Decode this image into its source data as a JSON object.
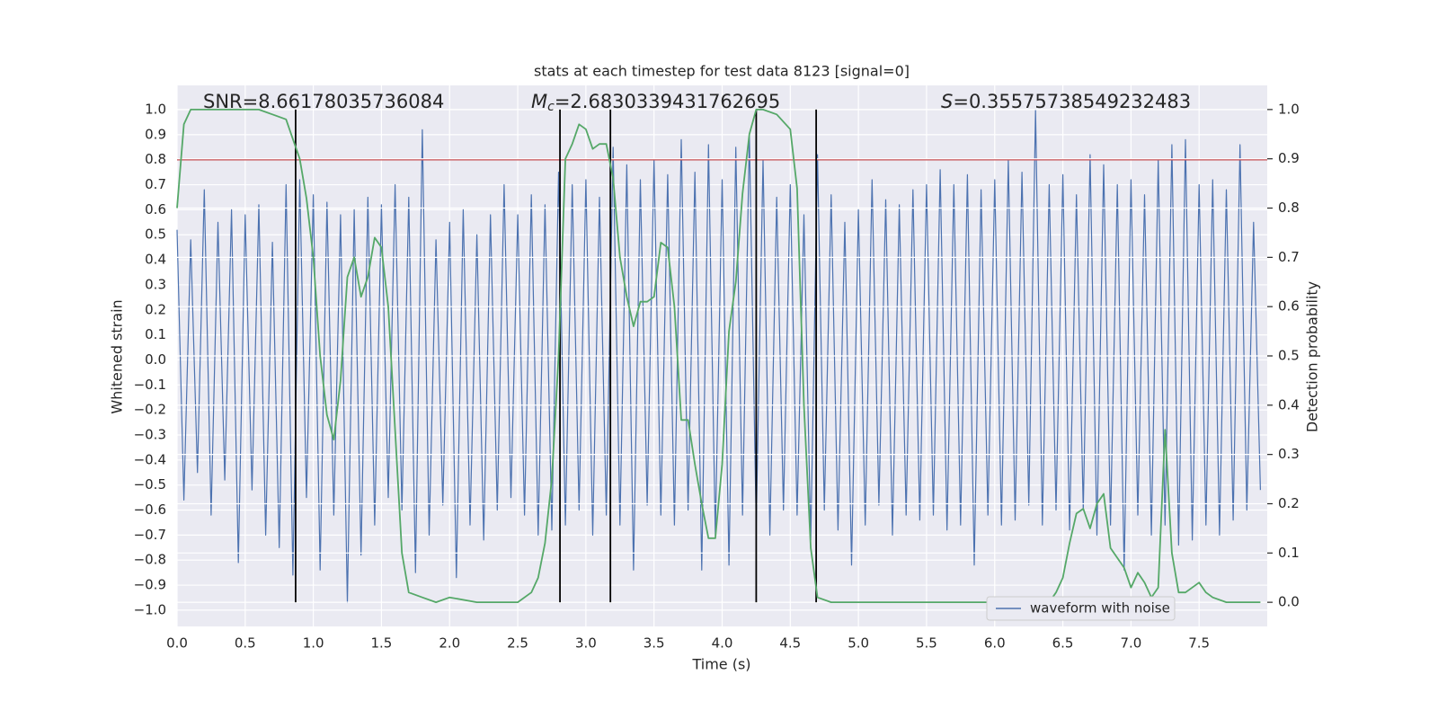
{
  "chart_data": {
    "type": "line",
    "title": "stats at each timestep for test data 8123 [signal=0]",
    "xlabel": "Time (s)",
    "ylabel": "Whitened strain",
    "y2label": "Detection probability",
    "annotations": [
      {
        "label": "SNR=8.66178035736084"
      },
      {
        "symbol": "M",
        "subscript": "c",
        "label": "=2.6830339431762695"
      },
      {
        "symbol": "S",
        "label": "=0.35575738549232483"
      }
    ],
    "xlim": [
      0,
      8.0
    ],
    "ylim": [
      -1.065,
      1.097
    ],
    "y2lim": [
      -0.049,
      1.049
    ],
    "xticks": [
      {
        "value": 0,
        "label": "0.0"
      },
      0.5,
      {
        "value": 1,
        "label": "1.0"
      },
      1.5,
      {
        "value": 2,
        "label": "2.0"
      },
      2.5,
      {
        "value": 3,
        "label": "3.0"
      },
      3.5,
      {
        "value": 4,
        "label": "4.0"
      },
      4.5,
      {
        "value": 5,
        "label": "5.0"
      },
      5.5,
      {
        "value": 6,
        "label": "6.0"
      },
      6.5,
      {
        "value": 7,
        "label": "7.0"
      },
      7.5
    ],
    "yticks": [
      {
        "value": -1,
        "label": "−1.0"
      },
      {
        "value": -0.9,
        "label": "−0.9"
      },
      {
        "value": -0.8,
        "label": "−0.8"
      },
      {
        "value": -0.7,
        "label": "−0.7"
      },
      {
        "value": -0.6,
        "label": "−0.6"
      },
      {
        "value": -0.5,
        "label": "−0.5"
      },
      {
        "value": -0.4,
        "label": "−0.4"
      },
      {
        "value": -0.3,
        "label": "−0.3"
      },
      {
        "value": -0.2,
        "label": "−0.2"
      },
      {
        "value": -0.1,
        "label": "−0.1"
      },
      {
        "value": 0,
        "label": "0.0"
      },
      0.1,
      0.2,
      0.3,
      0.4,
      0.5,
      0.6,
      0.7,
      0.8,
      0.9,
      {
        "value": 1,
        "label": "1.0"
      }
    ],
    "y2ticks": [
      {
        "value": 0,
        "label": "0.0"
      },
      0.1,
      0.2,
      0.3,
      0.4,
      0.5,
      0.6,
      0.7,
      0.8,
      0.9,
      {
        "value": 1,
        "label": "1.0"
      }
    ],
    "grid": true,
    "legend": "lower right",
    "hline": {
      "y": 0.8,
      "color": "#c44e52"
    },
    "vlines": {
      "x": [
        0.87,
        2.81,
        3.18,
        4.25,
        4.69
      ],
      "ymin": 0,
      "ymax": 1,
      "axis": "y2",
      "color": "#000000"
    },
    "series": [
      {
        "name": "waveform with noise",
        "color": "#4c72b0",
        "x": [
          0,
          0.05,
          0.1,
          0.15,
          0.2,
          0.25,
          0.3,
          0.35,
          0.4,
          0.45,
          0.5,
          0.55,
          0.6,
          0.65,
          0.7,
          0.75,
          0.8,
          0.85,
          0.9,
          0.95,
          1.0,
          1.05,
          1.1,
          1.15,
          1.2,
          1.25,
          1.3,
          1.35,
          1.4,
          1.45,
          1.5,
          1.55,
          1.6,
          1.65,
          1.7,
          1.75,
          1.8,
          1.85,
          1.9,
          1.95,
          2.0,
          2.05,
          2.1,
          2.15,
          2.2,
          2.25,
          2.3,
          2.35,
          2.4,
          2.45,
          2.5,
          2.55,
          2.6,
          2.65,
          2.7,
          2.75,
          2.8,
          2.85,
          2.9,
          2.95,
          3.0,
          3.05,
          3.1,
          3.15,
          3.2,
          3.25,
          3.3,
          3.35,
          3.4,
          3.45,
          3.5,
          3.55,
          3.6,
          3.65,
          3.7,
          3.75,
          3.8,
          3.85,
          3.9,
          3.95,
          4.0,
          4.05,
          4.1,
          4.15,
          4.2,
          4.25,
          4.3,
          4.35,
          4.4,
          4.45,
          4.5,
          4.55,
          4.6,
          4.65,
          4.7,
          4.75,
          4.8,
          4.85,
          4.9,
          4.95,
          5.0,
          5.05,
          5.1,
          5.15,
          5.2,
          5.25,
          5.3,
          5.35,
          5.4,
          5.45,
          5.5,
          5.55,
          5.6,
          5.65,
          5.7,
          5.75,
          5.8,
          5.85,
          5.9,
          5.95,
          6.0,
          6.05,
          6.1,
          6.15,
          6.2,
          6.25,
          6.3,
          6.35,
          6.4,
          6.45,
          6.5,
          6.55,
          6.6,
          6.65,
          6.7,
          6.75,
          6.8,
          6.85,
          6.9,
          6.95,
          7.0,
          7.05,
          7.1,
          7.15,
          7.2,
          7.25,
          7.3,
          7.35,
          7.4,
          7.45,
          7.5,
          7.55,
          7.6,
          7.65,
          7.7,
          7.75,
          7.8,
          7.85,
          7.9,
          7.95
        ],
        "values": [
          0.52,
          -0.56,
          0.48,
          -0.45,
          0.68,
          -0.62,
          0.55,
          -0.48,
          0.6,
          -0.81,
          0.58,
          -0.52,
          0.62,
          -0.7,
          0.47,
          -0.75,
          0.7,
          -0.86,
          0.72,
          -0.55,
          0.66,
          -0.84,
          0.63,
          -0.62,
          0.58,
          -0.97,
          0.6,
          -0.78,
          0.65,
          -0.66,
          0.62,
          -0.55,
          0.7,
          -0.6,
          0.65,
          -0.85,
          0.92,
          -0.7,
          0.48,
          -0.58,
          0.55,
          -0.87,
          0.6,
          -0.66,
          0.5,
          -0.72,
          0.58,
          -0.6,
          0.7,
          -0.55,
          0.58,
          -0.62,
          0.66,
          -0.7,
          0.62,
          -0.68,
          0.75,
          -0.66,
          0.7,
          -0.6,
          0.72,
          -0.7,
          0.65,
          -0.62,
          0.85,
          -0.66,
          0.78,
          -0.84,
          0.72,
          -0.58,
          0.8,
          -0.62,
          0.74,
          -0.66,
          0.88,
          -0.6,
          0.75,
          -0.84,
          0.86,
          -0.7,
          0.72,
          -0.82,
          0.85,
          -0.62,
          0.9,
          -0.66,
          0.8,
          -0.7,
          0.65,
          -0.6,
          0.7,
          -0.62,
          0.58,
          -0.72,
          0.82,
          -0.6,
          0.66,
          -0.68,
          0.55,
          -0.82,
          0.6,
          -0.66,
          0.72,
          -0.58,
          0.64,
          -0.7,
          0.62,
          -0.62,
          0.68,
          -0.64,
          0.7,
          -0.62,
          0.76,
          -0.68,
          0.7,
          -0.66,
          0.74,
          -0.82,
          0.68,
          -0.62,
          0.72,
          -0.66,
          0.8,
          -0.64,
          0.75,
          -0.58,
          1.0,
          -0.66,
          0.7,
          -0.6,
          0.74,
          -0.68,
          0.66,
          -0.6,
          0.82,
          -0.7,
          0.78,
          -0.66,
          0.7,
          -0.84,
          0.72,
          -0.62,
          0.66,
          -0.7,
          0.8,
          -0.66,
          0.86,
          -0.74,
          0.88,
          -0.72,
          0.7,
          -0.66,
          0.72,
          -0.7,
          0.68,
          -0.64,
          0.86,
          -0.6,
          0.55,
          -0.52
        ]
      },
      {
        "color": "#55a868",
        "axis": "y2",
        "x": [
          0,
          0.05,
          0.1,
          0.2,
          0.3,
          0.4,
          0.5,
          0.6,
          0.7,
          0.8,
          0.85,
          0.9,
          0.95,
          1.0,
          1.05,
          1.1,
          1.15,
          1.2,
          1.25,
          1.3,
          1.35,
          1.4,
          1.45,
          1.5,
          1.55,
          1.6,
          1.65,
          1.7,
          1.8,
          1.9,
          2.0,
          2.2,
          2.4,
          2.5,
          2.6,
          2.65,
          2.7,
          2.75,
          2.8,
          2.85,
          2.9,
          2.95,
          3.0,
          3.05,
          3.1,
          3.15,
          3.2,
          3.25,
          3.3,
          3.35,
          3.4,
          3.45,
          3.5,
          3.55,
          3.6,
          3.65,
          3.7,
          3.75,
          3.8,
          3.85,
          3.9,
          3.95,
          4.0,
          4.05,
          4.1,
          4.15,
          4.2,
          4.25,
          4.3,
          4.4,
          4.5,
          4.55,
          4.6,
          4.65,
          4.7,
          4.8,
          5.0,
          5.5,
          6.0,
          6.4,
          6.45,
          6.5,
          6.55,
          6.6,
          6.65,
          6.7,
          6.75,
          6.8,
          6.85,
          6.9,
          6.95,
          7.0,
          7.05,
          7.1,
          7.15,
          7.2,
          7.25,
          7.3,
          7.35,
          7.4,
          7.45,
          7.5,
          7.55,
          7.6,
          7.7,
          7.95
        ],
        "values": [
          0.8,
          0.97,
          1.0,
          1.0,
          1.0,
          1.0,
          1.0,
          1.0,
          0.99,
          0.98,
          0.94,
          0.9,
          0.82,
          0.7,
          0.5,
          0.38,
          0.33,
          0.45,
          0.66,
          0.7,
          0.62,
          0.66,
          0.74,
          0.72,
          0.6,
          0.35,
          0.1,
          0.02,
          0.01,
          0.0,
          0.01,
          0.0,
          0.0,
          0.0,
          0.02,
          0.05,
          0.12,
          0.25,
          0.5,
          0.9,
          0.93,
          0.97,
          0.96,
          0.92,
          0.93,
          0.93,
          0.86,
          0.7,
          0.62,
          0.56,
          0.61,
          0.61,
          0.62,
          0.73,
          0.72,
          0.6,
          0.37,
          0.37,
          0.28,
          0.2,
          0.13,
          0.13,
          0.28,
          0.55,
          0.65,
          0.83,
          0.95,
          1.0,
          1.0,
          0.99,
          0.96,
          0.84,
          0.4,
          0.11,
          0.01,
          0.0,
          0.0,
          0.0,
          0.0,
          0.0,
          0.02,
          0.05,
          0.12,
          0.18,
          0.19,
          0.15,
          0.2,
          0.22,
          0.11,
          0.09,
          0.07,
          0.03,
          0.06,
          0.04,
          0.01,
          0.03,
          0.35,
          0.1,
          0.02,
          0.02,
          0.03,
          0.04,
          0.02,
          0.01,
          0.0,
          0.0
        ]
      }
    ]
  }
}
